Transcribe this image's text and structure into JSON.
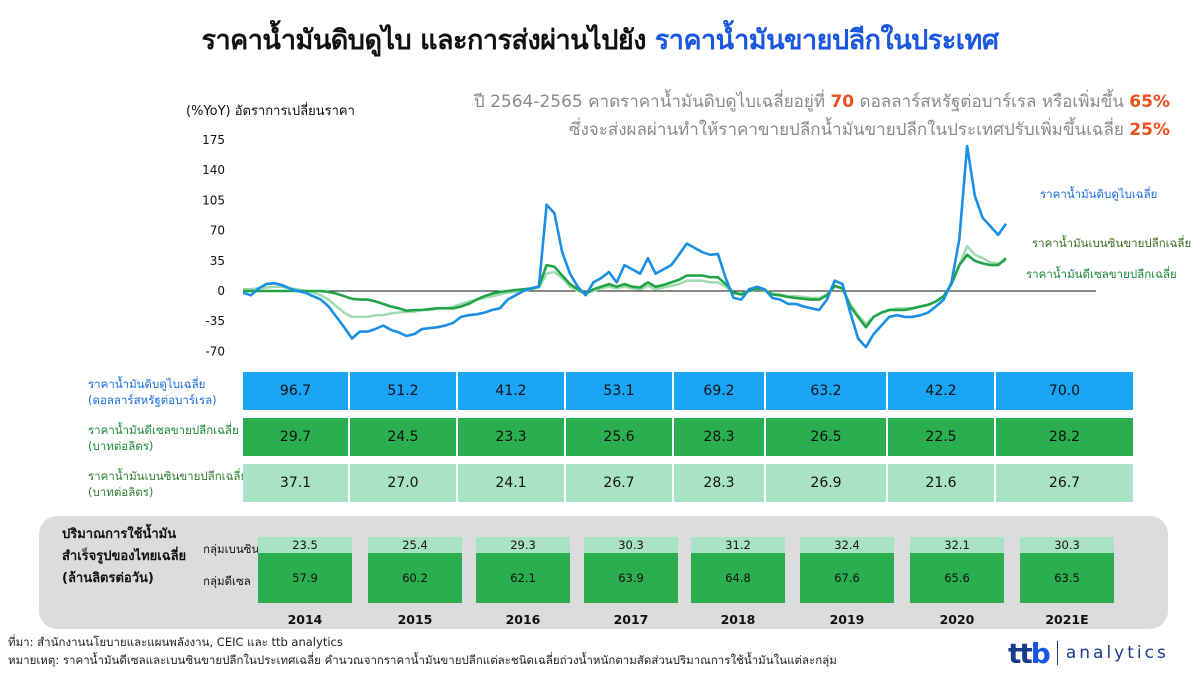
{
  "title": {
    "part1": "ราคาน้ำมันดิบดูไบ และการส่งผ่านไปยัง",
    "part2": "ราคาน้ำมันขายปลีกในประเทศ"
  },
  "note": {
    "line1_a": "ปี 2564-2565 คาดราคาน้ำมันดิบดูไบเฉลี่ยอยู่ที่ ",
    "line1_v1": "70",
    "line1_b": " ดอลลาร์สหรัฐต่อบาร์เรล หรือเพิ่มขึ้น ",
    "line1_v2": "65%",
    "line2_a": "ซึ่งจะส่งผลผ่านทำให้ราคาขายปลีกน้ำมันขายปลีกในประเทศปรับเพิ่มขึ้นเฉลี่ย ",
    "line2_v": "25%"
  },
  "colors": {
    "dubai": "#1a8fe3",
    "gasohol": "#a0dcb0",
    "diesel": "#21a347",
    "highlight": "#f04e1e",
    "title_accent": "#1a57e0"
  },
  "chart_data": {
    "type": "line",
    "ylabel": "(%YoY) อัตราการเปลี่ยนราคา",
    "ylim": [
      -70,
      175
    ],
    "yticks": [
      175,
      140,
      105,
      70,
      35,
      0,
      -35,
      -70
    ],
    "x_start": 2014.0,
    "x_end": 2021.92,
    "series": [
      {
        "name": "ราคาน้ำมันดิบดูไบเฉลี่ย",
        "color": "#1a8fe3",
        "values": [
          -2,
          -5,
          3,
          8,
          9,
          7,
          3,
          0,
          -2,
          -6,
          -10,
          -18,
          -30,
          -42,
          -55,
          -47,
          -47,
          -44,
          -40,
          -45,
          -48,
          -52,
          -50,
          -44,
          -43,
          -42,
          -40,
          -37,
          -30,
          -28,
          -27,
          -25,
          -22,
          -20,
          -10,
          -5,
          0,
          3,
          5,
          100,
          90,
          45,
          20,
          5,
          -5,
          10,
          15,
          22,
          10,
          30,
          25,
          20,
          38,
          20,
          25,
          30,
          42,
          55,
          50,
          45,
          42,
          43,
          15,
          -8,
          -10,
          2,
          5,
          2,
          -8,
          -10,
          -15,
          -15,
          -18,
          -20,
          -22,
          -10,
          12,
          8,
          -25,
          -55,
          -65,
          -50,
          -40,
          -30,
          -28,
          -30,
          -30,
          -28,
          -25,
          -18,
          -10,
          10,
          60,
          168,
          110,
          85,
          75,
          65,
          78
        ]
      },
      {
        "name": "ราคาน้ำมันเบนซินขายปลีกเฉลี่ย",
        "color": "#a0dcb0",
        "values": [
          2,
          2,
          3,
          4,
          5,
          5,
          3,
          2,
          0,
          -2,
          -5,
          -10,
          -18,
          -25,
          -30,
          -30,
          -30,
          -28,
          -28,
          -26,
          -25,
          -24,
          -24,
          -22,
          -22,
          -20,
          -20,
          -18,
          -15,
          -12,
          -10,
          -8,
          -6,
          -4,
          -2,
          -1,
          0,
          2,
          4,
          20,
          22,
          15,
          5,
          0,
          -3,
          0,
          3,
          5,
          3,
          5,
          3,
          2,
          6,
          2,
          4,
          6,
          8,
          12,
          12,
          12,
          10,
          10,
          5,
          -2,
          -3,
          0,
          2,
          1,
          -3,
          -4,
          -6,
          -6,
          -7,
          -8,
          -8,
          -4,
          5,
          3,
          -15,
          -28,
          -38,
          -30,
          -25,
          -22,
          -20,
          -20,
          -20,
          -18,
          -16,
          -12,
          -6,
          8,
          30,
          52,
          42,
          38,
          33,
          32,
          35
        ]
      },
      {
        "name": "ราคาน้ำมันดีเซลขายปลีกเฉลี่ย",
        "color": "#21a347",
        "values": [
          0,
          0,
          0,
          0,
          0,
          0,
          0,
          0,
          0,
          0,
          0,
          -1,
          -3,
          -6,
          -9,
          -10,
          -10,
          -12,
          -15,
          -18,
          -20,
          -23,
          -22,
          -22,
          -21,
          -20,
          -20,
          -20,
          -18,
          -15,
          -10,
          -6,
          -3,
          -1,
          0,
          1,
          2,
          3,
          5,
          30,
          28,
          18,
          8,
          2,
          -3,
          2,
          5,
          8,
          5,
          8,
          5,
          4,
          10,
          5,
          7,
          10,
          13,
          18,
          18,
          18,
          16,
          16,
          8,
          -2,
          -4,
          0,
          3,
          1,
          -4,
          -5,
          -7,
          -8,
          -9,
          -10,
          -10,
          -5,
          6,
          3,
          -18,
          -30,
          -42,
          -30,
          -25,
          -22,
          -22,
          -22,
          -20,
          -18,
          -16,
          -12,
          -6,
          8,
          30,
          42,
          35,
          32,
          30,
          30,
          38
        ]
      }
    ],
    "table": {
      "years": [
        "2014",
        "2015",
        "2016",
        "2017",
        "2018",
        "2019",
        "2020",
        "2021E"
      ],
      "rows": [
        {
          "label1": "ราคาน้ำมันดิบดูไบเฉลี่ย",
          "label2": "(ดอลลาร์สหรัฐต่อบาร์เรล)",
          "values": [
            "96.7",
            "51.2",
            "41.2",
            "53.1",
            "69.2",
            "63.2",
            "42.2",
            "70.0"
          ]
        },
        {
          "label1": "ราคาน้ำมันดีเซลขายปลีกเฉลี่ย",
          "label2": "(บาทต่อลิตร)",
          "values": [
            "29.7",
            "24.5",
            "23.3",
            "25.6",
            "28.3",
            "26.5",
            "22.5",
            "28.2"
          ]
        },
        {
          "label1": "ราคาน้ำมันเบนซินขายปลีกเฉลี่ย",
          "label2": "(บาทต่อลิตร)",
          "values": [
            "37.1",
            "27.0",
            "24.1",
            "26.7",
            "28.3",
            "26.9",
            "21.6",
            "26.7"
          ]
        }
      ]
    },
    "consumption": {
      "title": [
        "ปริมาณการใช้น้ำมัน",
        "สำเร็จรูปของไทยเฉลี่ย",
        "(ล้านลิตรต่อวัน)"
      ],
      "gasohol_label": "กลุ่มเบนซิน",
      "diesel_label": "กลุ่มดีเซล",
      "gasohol": [
        "23.5",
        "25.4",
        "29.3",
        "30.3",
        "31.2",
        "32.4",
        "32.1",
        "30.3"
      ],
      "diesel": [
        "57.9",
        "60.2",
        "62.1",
        "63.9",
        "64.8",
        "67.6",
        "65.6",
        "63.5"
      ]
    }
  },
  "footer": {
    "source": "ที่มา: สำนักงานนโยบายและแผนพลังงาน, CEIC และ ttb analytics",
    "remark": "หมายเหตุ:  ราคาน้ำมันดีเซลและเบนซินขายปลีกในประเทศเฉลี่ย คำนวณจากราคาน้ำมันขายปลีกแต่ละชนิดเฉลี่ยถ่วงน้ำหนักตามสัดส่วนปริมาณการใช้น้ำมันในแต่ละกลุ่ม"
  },
  "logo": {
    "brand_a": "tt",
    "brand_b": "b",
    "suffix": "analytics"
  }
}
